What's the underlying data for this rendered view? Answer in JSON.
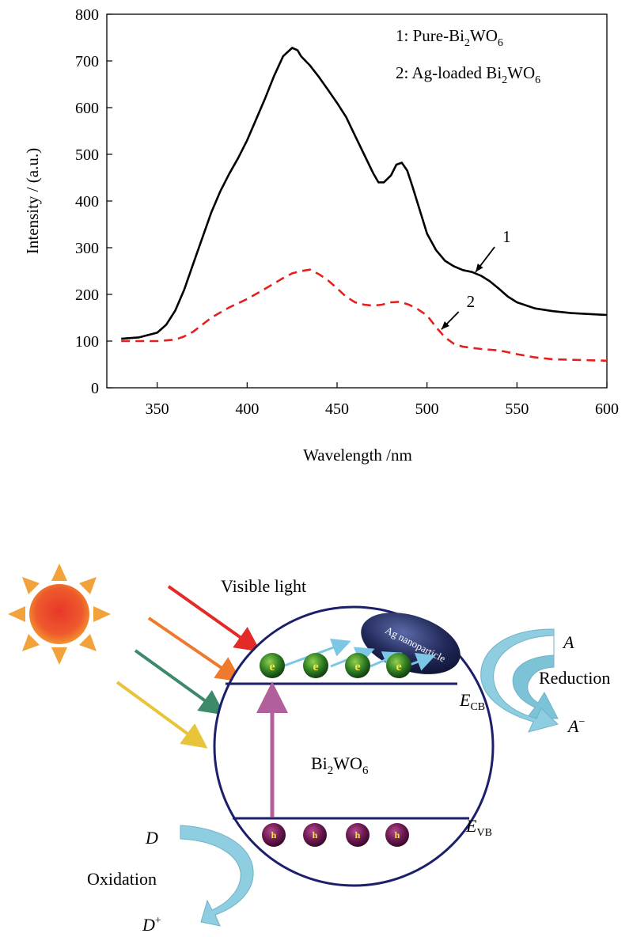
{
  "chart_data": {
    "type": "line",
    "xlabel": "Wavelength /nm",
    "ylabel": "Intensity / (a.u.)",
    "xlim": [
      322,
      600
    ],
    "ylim": [
      0,
      800
    ],
    "xticks": [
      350,
      400,
      450,
      500,
      550,
      600
    ],
    "yticks": [
      0,
      100,
      200,
      300,
      400,
      500,
      600,
      700,
      800
    ],
    "grid": false,
    "legend_position": "top-right",
    "legend": [
      {
        "number": "1",
        "pre": "1: Pure-Bi",
        "sub1": "2",
        "mid": "WO",
        "sub2": "6"
      },
      {
        "number": "2",
        "pre": "2: Ag-loaded Bi",
        "sub1": "2",
        "mid": "WO",
        "sub2": "6"
      }
    ],
    "series": [
      {
        "label": "1",
        "color": "#000000",
        "style": "solid",
        "points": [
          [
            330,
            105
          ],
          [
            340,
            108
          ],
          [
            350,
            118
          ],
          [
            355,
            135
          ],
          [
            360,
            165
          ],
          [
            365,
            210
          ],
          [
            370,
            265
          ],
          [
            375,
            320
          ],
          [
            380,
            375
          ],
          [
            385,
            420
          ],
          [
            390,
            458
          ],
          [
            395,
            492
          ],
          [
            400,
            530
          ],
          [
            405,
            575
          ],
          [
            410,
            620
          ],
          [
            415,
            668
          ],
          [
            420,
            710
          ],
          [
            425,
            728
          ],
          [
            428,
            723
          ],
          [
            430,
            710
          ],
          [
            435,
            690
          ],
          [
            440,
            665
          ],
          [
            445,
            638
          ],
          [
            450,
            610
          ],
          [
            455,
            580
          ],
          [
            460,
            540
          ],
          [
            465,
            500
          ],
          [
            470,
            460
          ],
          [
            473,
            440
          ],
          [
            476,
            440
          ],
          [
            480,
            455
          ],
          [
            483,
            478
          ],
          [
            486,
            482
          ],
          [
            489,
            465
          ],
          [
            492,
            430
          ],
          [
            496,
            380
          ],
          [
            500,
            330
          ],
          [
            505,
            295
          ],
          [
            510,
            272
          ],
          [
            515,
            260
          ],
          [
            520,
            252
          ],
          [
            525,
            248
          ],
          [
            530,
            240
          ],
          [
            535,
            228
          ],
          [
            540,
            212
          ],
          [
            545,
            195
          ],
          [
            550,
            183
          ],
          [
            560,
            170
          ],
          [
            570,
            164
          ],
          [
            580,
            160
          ],
          [
            590,
            158
          ],
          [
            600,
            156
          ]
        ]
      },
      {
        "label": "2",
        "color": "#e4201e",
        "style": "dashed",
        "points": [
          [
            330,
            100
          ],
          [
            340,
            100
          ],
          [
            350,
            100
          ],
          [
            360,
            103
          ],
          [
            365,
            110
          ],
          [
            370,
            120
          ],
          [
            375,
            135
          ],
          [
            380,
            150
          ],
          [
            390,
            172
          ],
          [
            400,
            190
          ],
          [
            410,
            212
          ],
          [
            420,
            235
          ],
          [
            425,
            245
          ],
          [
            430,
            250
          ],
          [
            435,
            253
          ],
          [
            440,
            243
          ],
          [
            445,
            230
          ],
          [
            450,
            213
          ],
          [
            455,
            195
          ],
          [
            460,
            183
          ],
          [
            465,
            178
          ],
          [
            470,
            176
          ],
          [
            475,
            178
          ],
          [
            480,
            183
          ],
          [
            485,
            184
          ],
          [
            490,
            178
          ],
          [
            495,
            168
          ],
          [
            500,
            155
          ],
          [
            505,
            130
          ],
          [
            510,
            108
          ],
          [
            515,
            94
          ],
          [
            520,
            88
          ],
          [
            530,
            83
          ],
          [
            540,
            80
          ],
          [
            550,
            72
          ],
          [
            560,
            65
          ],
          [
            570,
            61
          ],
          [
            580,
            60
          ],
          [
            590,
            59
          ],
          [
            600,
            58
          ]
        ]
      }
    ],
    "annotations": [
      {
        "text": "1",
        "at": [
          527,
          248
        ],
        "label_at": [
          542,
          322
        ]
      },
      {
        "text": "2",
        "at": [
          508,
          125
        ],
        "label_at": [
          522,
          183
        ]
      }
    ]
  },
  "diagram": {
    "visible_light": "Visible light",
    "ag_nanoparticle": "Ag nanoparticle",
    "material": {
      "base": "Bi",
      "sub1": "2",
      "mid": "WO",
      "sub2": "6"
    },
    "ecb": {
      "main": "E",
      "sub": "CB"
    },
    "evb": {
      "main": "E",
      "sub": "VB"
    },
    "electron": "e",
    "hole": "h",
    "reduction": "Reduction",
    "a_label": "A",
    "a_minus": {
      "main": "A",
      "sup": "−"
    },
    "oxidation": "Oxidation",
    "d_label": "D",
    "d_plus": {
      "main": "D",
      "sup": "+"
    },
    "ray_colors": [
      "#e32a26",
      "#ef7a2d",
      "#3c8a6a",
      "#e8c43a"
    ]
  }
}
